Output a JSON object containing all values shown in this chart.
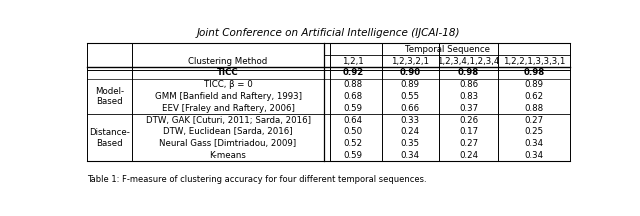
{
  "top_text": "Joint Conference on Artificial Intelligence (IJCAI-18)",
  "temporal_header": "Temporal Sequence",
  "col_header_left": "Clustering Method",
  "col_headers": [
    "1,2,1",
    "1,2,3,2,1",
    "1,2,3,4,1,2,3,4",
    "1,2,2,1,3,3,3,1"
  ],
  "row_groups": [
    {
      "group_label": "",
      "rows": [
        {
          "method": "TICC",
          "values": [
            "0.92",
            "0.90",
            "0.98",
            "0.98"
          ],
          "bold": true
        }
      ]
    },
    {
      "group_label": "Model-\nBased",
      "rows": [
        {
          "method": "TICC, β = 0",
          "values": [
            "0.88",
            "0.89",
            "0.86",
            "0.89"
          ],
          "bold": false
        },
        {
          "method": "GMM [Banfield and Raftery, 1993]",
          "values": [
            "0.68",
            "0.55",
            "0.83",
            "0.62"
          ],
          "bold": false
        },
        {
          "method": "EEV [Fraley and Raftery, 2006]",
          "values": [
            "0.59",
            "0.66",
            "0.37",
            "0.88"
          ],
          "bold": false
        }
      ]
    },
    {
      "group_label": "Distance-\nBased",
      "rows": [
        {
          "method": "DTW, GAK [Cuturi, 2011; Sarda, 2016]",
          "values": [
            "0.64",
            "0.33",
            "0.26",
            "0.27"
          ],
          "bold": false
        },
        {
          "method": "DTW, Euclidean [Sarda, 2016]",
          "values": [
            "0.50",
            "0.24",
            "0.17",
            "0.25"
          ],
          "bold": false
        },
        {
          "method": "Neural Gass [Dimtriadou, 2009]",
          "values": [
            "0.52",
            "0.35",
            "0.27",
            "0.34"
          ],
          "bold": false
        },
        {
          "method": "K-means",
          "values": [
            "0.59",
            "0.34",
            "0.24",
            "0.34"
          ],
          "bold": false
        }
      ]
    }
  ],
  "bottom_text": "Table 1: F-measure of clustering accuracy for four different temporal sequences.",
  "background_color": "#ffffff",
  "text_color": "#000000"
}
